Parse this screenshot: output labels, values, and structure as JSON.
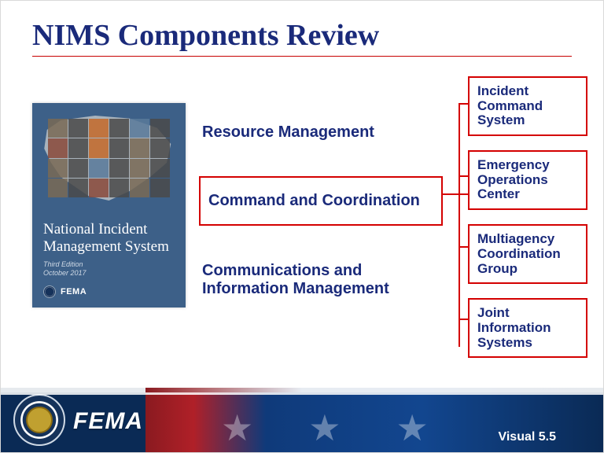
{
  "title": "NIMS Components Review",
  "colors": {
    "heading": "#1a2a7a",
    "rule": "#c80000",
    "box_border": "#d40000",
    "cover_bg": "#3d6088",
    "footer_navy": "#0a2a55",
    "footer_red": "#b02028"
  },
  "cover": {
    "title": "National Incident Management System",
    "edition": "Third Edition",
    "date": "October 2017",
    "agency": "FEMA"
  },
  "center_items": [
    {
      "label": "Resource Management",
      "boxed": false
    },
    {
      "label": "Command and Coordination",
      "boxed": true
    },
    {
      "label": "Communications and Information Management",
      "boxed": false
    }
  ],
  "right_items": [
    {
      "label": "Incident Command System"
    },
    {
      "label": "Emergency Operations Center"
    },
    {
      "label": "Multiagency Coordination Group"
    },
    {
      "label": "Joint Information Systems"
    }
  ],
  "footer": {
    "agency": "FEMA",
    "visual": "Visual 5.5"
  }
}
